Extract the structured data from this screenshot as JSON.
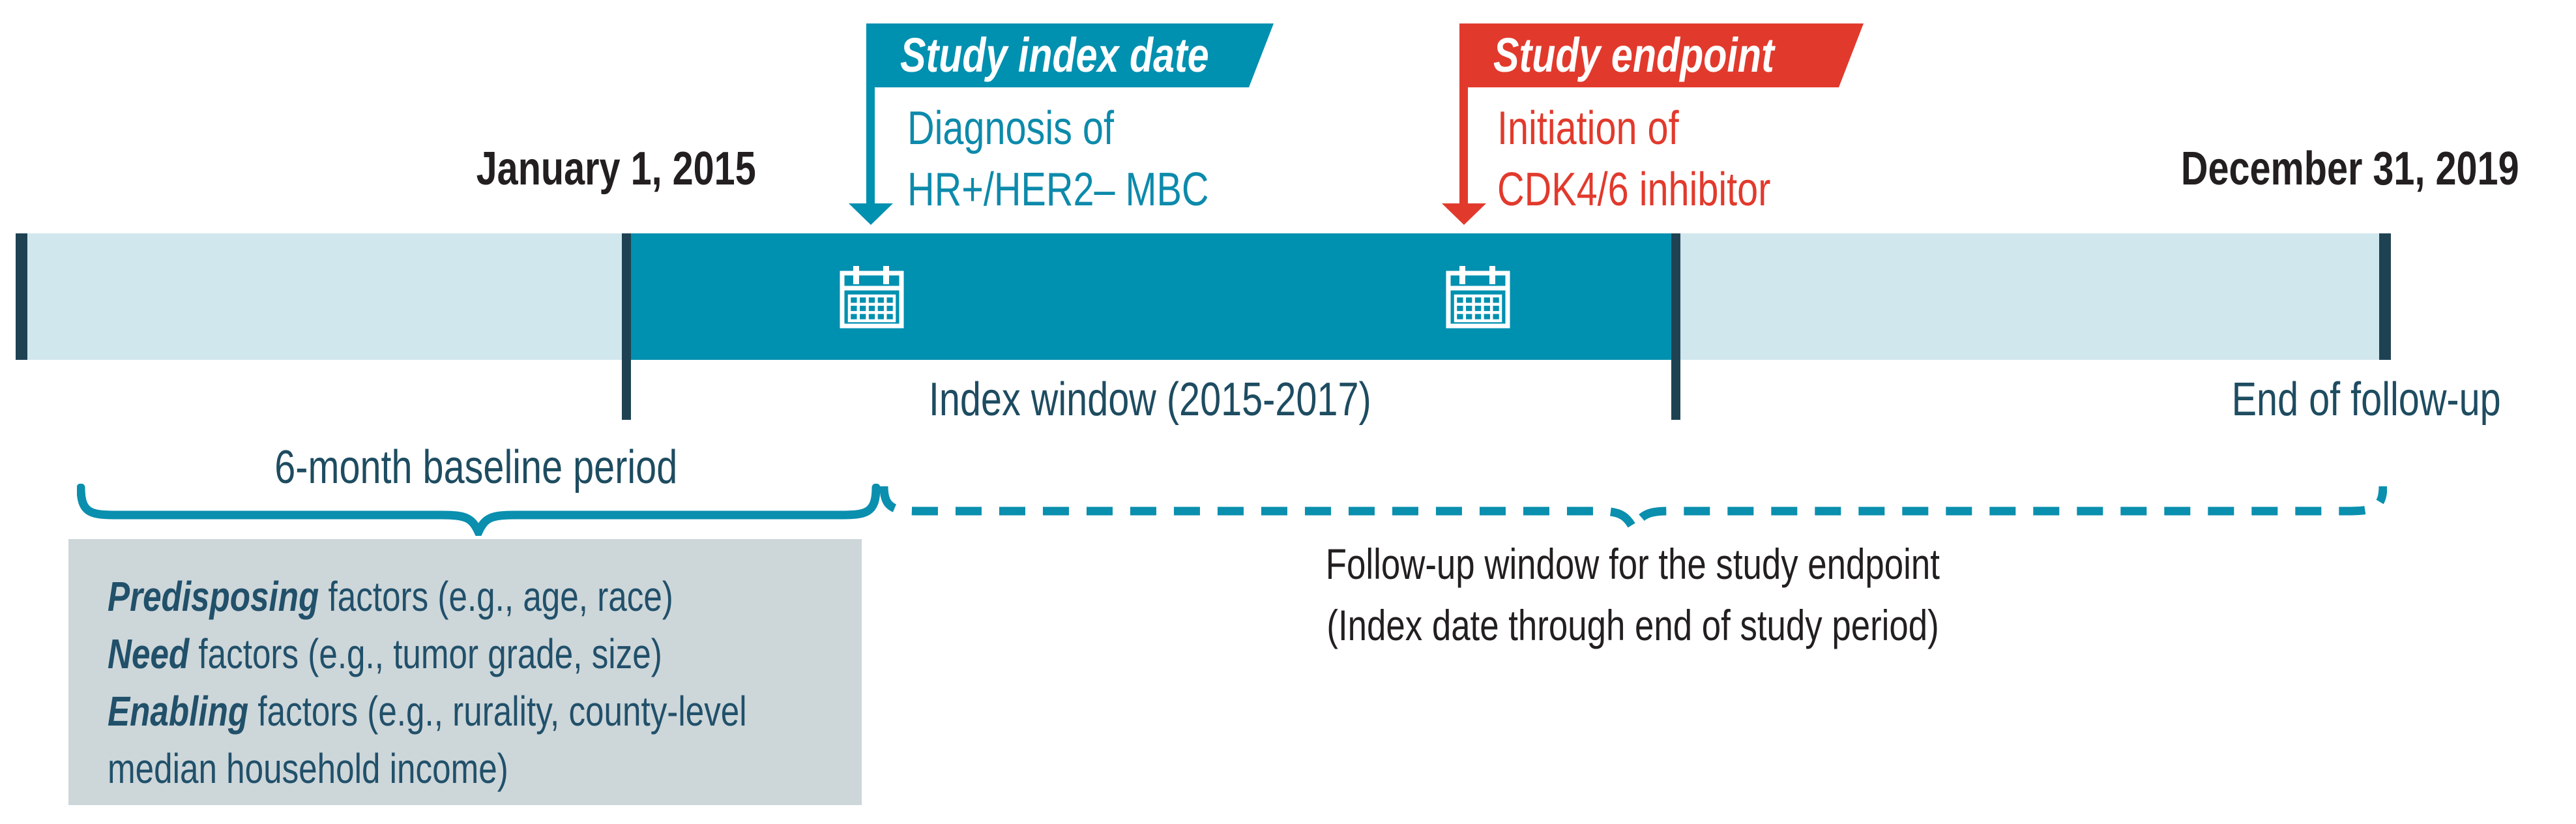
{
  "colors": {
    "teal": "#0090b0",
    "teal_text": "#0d8aab",
    "light_blue": "#d0e7ee",
    "dark_tick": "#1f4253",
    "dark_teal_text": "#1e4c61",
    "red": "#e13a2d",
    "gray_box": "#cdd6d9",
    "black_text": "#231f20"
  },
  "flags": {
    "index": {
      "title": "Study index date",
      "caption_line1": "Diagnosis of",
      "caption_line2": "HR+/HER2– MBC"
    },
    "endpoint": {
      "title": "Study endpoint",
      "caption_line1": "Initiation of",
      "caption_line2": "CDK4/6 inhibitor"
    }
  },
  "timeline": {
    "start_date": "January 1, 2015",
    "end_date": "December 31, 2019",
    "index_window_label": "Index window (2015-2017)",
    "end_label": "End of follow-up"
  },
  "baseline": {
    "label": "6-month baseline period",
    "box_lines": [
      {
        "lead": "Predisposing",
        "rest": " factors (e.g., age, race)"
      },
      {
        "lead": "Need",
        "rest": " factors (e.g., tumor grade, size)"
      },
      {
        "lead": "Enabling",
        "rest": " factors (e.g., rurality, county-level"
      },
      {
        "lead": "",
        "rest": "median household income)"
      }
    ]
  },
  "followup": {
    "line1": "Follow-up window for the study endpoint",
    "line2": "(Index date through end of study period)"
  }
}
